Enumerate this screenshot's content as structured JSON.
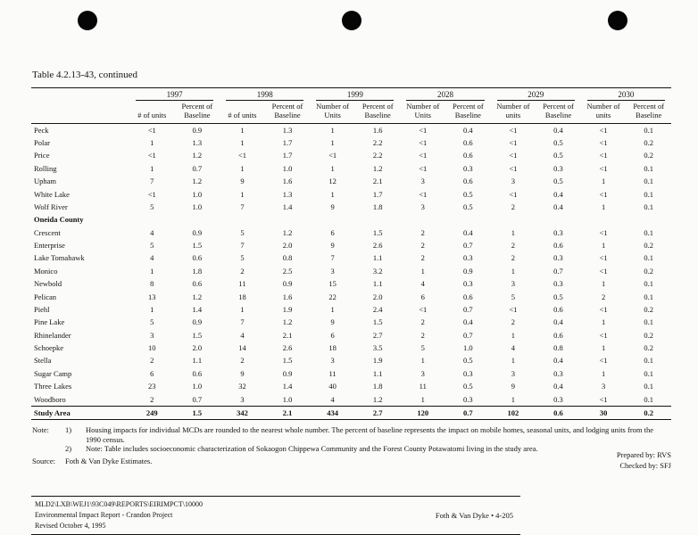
{
  "page": {
    "title": "Table 4.2.13-43, continued",
    "note_label": "Note:",
    "notes": [
      {
        "num": "1)",
        "text": "Housing impacts for individual MCDs are rounded to the nearest whole number.  The percent of baseline represents the impact on mobile homes, seasonal units, and lodging units from the 1990 census."
      },
      {
        "num": "2)",
        "text": "Note:  Table includes socioeconomic characterization of Sokaogon Chippewa Community and the Forest County Potawatomi living in the study area."
      }
    ],
    "source_label": "Source:",
    "source_text": "Foth & Van Dyke Estimates.",
    "prepared_by": "Prepared by: RVS",
    "checked_by": "Checked by: SFJ",
    "footer_path": "MLD2\\LXB\\WEJ1\\93C049\\REPORTS\\EIRIMPCT\\10000",
    "footer_doc": "Environmental Impact Report - Crandon Project",
    "footer_revised": "Revised October 4, 1995",
    "footer_right": "Foth & Van Dyke • 4-205"
  },
  "table": {
    "year_groups": [
      {
        "year": "1997",
        "col1": "# of units",
        "col2": "Percent of Baseline"
      },
      {
        "year": "1998",
        "col1": "# of units",
        "col2": "Percent of Baseline"
      },
      {
        "year": "1999",
        "col1": "Number of Units",
        "col2": "Percent of Baseline"
      },
      {
        "year": "2028",
        "col1": "Number of Units",
        "col2": "Percent of Baseline"
      },
      {
        "year": "2029",
        "col1": "Number of units",
        "col2": "Percent of Baseline"
      },
      {
        "year": "2030",
        "col1": "Number of units",
        "col2": "Percent of Baseline"
      }
    ],
    "rows": [
      {
        "name": "Peck",
        "values": [
          "<1",
          "0.9",
          "1",
          "1.3",
          "1",
          "1.6",
          "<1",
          "0.4",
          "<1",
          "0.4",
          "<1",
          "0.1"
        ]
      },
      {
        "name": "Polar",
        "values": [
          "1",
          "1.3",
          "1",
          "1.7",
          "1",
          "2.2",
          "<1",
          "0.6",
          "<1",
          "0.5",
          "<1",
          "0.2"
        ]
      },
      {
        "name": "Price",
        "values": [
          "<1",
          "1.2",
          "<1",
          "1.7",
          "<1",
          "2.2",
          "<1",
          "0.6",
          "<1",
          "0.5",
          "<1",
          "0.2"
        ]
      },
      {
        "name": "Rolling",
        "values": [
          "1",
          "0.7",
          "1",
          "1.0",
          "1",
          "1.2",
          "<1",
          "0.3",
          "<1",
          "0.3",
          "<1",
          "0.1"
        ]
      },
      {
        "name": "Upham",
        "values": [
          "7",
          "1.2",
          "9",
          "1.6",
          "12",
          "2.1",
          "3",
          "0.6",
          "3",
          "0.5",
          "1",
          "0.1"
        ]
      },
      {
        "name": "White Lake",
        "values": [
          "<1",
          "1.0",
          "1",
          "1.3",
          "1",
          "1.7",
          "<1",
          "0.5",
          "<1",
          "0.4",
          "<1",
          "0.1"
        ]
      },
      {
        "name": "Wolf River",
        "values": [
          "5",
          "1.0",
          "7",
          "1.4",
          "9",
          "1.8",
          "3",
          "0.5",
          "2",
          "0.4",
          "1",
          "0.1"
        ]
      },
      {
        "name": "Oneida County",
        "section": true,
        "values": [
          "",
          "",
          "",
          "",
          "",
          "",
          "",
          "",
          "",
          "",
          "",
          ""
        ]
      },
      {
        "name": "Crescent",
        "values": [
          "4",
          "0.9",
          "5",
          "1.2",
          "6",
          "1.5",
          "2",
          "0.4",
          "1",
          "0.3",
          "<1",
          "0.1"
        ]
      },
      {
        "name": "Enterprise",
        "values": [
          "5",
          "1.5",
          "7",
          "2.0",
          "9",
          "2.6",
          "2",
          "0.7",
          "2",
          "0.6",
          "1",
          "0.2"
        ]
      },
      {
        "name": "Lake Tomahawk",
        "values": [
          "4",
          "0.6",
          "5",
          "0.8",
          "7",
          "1.1",
          "2",
          "0.3",
          "2",
          "0.3",
          "<1",
          "0.1"
        ]
      },
      {
        "name": "Monico",
        "values": [
          "1",
          "1.8",
          "2",
          "2.5",
          "3",
          "3.2",
          "1",
          "0.9",
          "1",
          "0.7",
          "<1",
          "0.2"
        ]
      },
      {
        "name": "Newbold",
        "values": [
          "8",
          "0.6",
          "11",
          "0.9",
          "15",
          "1.1",
          "4",
          "0.3",
          "3",
          "0.3",
          "1",
          "0.1"
        ]
      },
      {
        "name": "Pelican",
        "values": [
          "13",
          "1.2",
          "18",
          "1.6",
          "22",
          "2.0",
          "6",
          "0.6",
          "5",
          "0.5",
          "2",
          "0.1"
        ]
      },
      {
        "name": "Piehl",
        "values": [
          "1",
          "1.4",
          "1",
          "1.9",
          "1",
          "2.4",
          "<1",
          "0.7",
          "<1",
          "0.6",
          "<1",
          "0.2"
        ]
      },
      {
        "name": "Pine Lake",
        "values": [
          "5",
          "0.9",
          "7",
          "1.2",
          "9",
          "1.5",
          "2",
          "0.4",
          "2",
          "0.4",
          "1",
          "0.1"
        ]
      },
      {
        "name": "Rhinelander",
        "values": [
          "3",
          "1.5",
          "4",
          "2.1",
          "6",
          "2.7",
          "2",
          "0.7",
          "1",
          "0.6",
          "<1",
          "0.2"
        ]
      },
      {
        "name": "Schoepke",
        "values": [
          "10",
          "2.0",
          "14",
          "2.6",
          "18",
          "3.5",
          "5",
          "1.0",
          "4",
          "0.8",
          "1",
          "0.2"
        ]
      },
      {
        "name": "Stella",
        "values": [
          "2",
          "1.1",
          "2",
          "1.5",
          "3",
          "1.9",
          "1",
          "0.5",
          "1",
          "0.4",
          "<1",
          "0.1"
        ]
      },
      {
        "name": "Sugar Camp",
        "values": [
          "6",
          "0.6",
          "9",
          "0.9",
          "11",
          "1.1",
          "3",
          "0.3",
          "3",
          "0.3",
          "1",
          "0.1"
        ]
      },
      {
        "name": "Three Lakes",
        "values": [
          "23",
          "1.0",
          "32",
          "1.4",
          "40",
          "1.8",
          "11",
          "0.5",
          "9",
          "0.4",
          "3",
          "0.1"
        ]
      },
      {
        "name": "Woodboro",
        "values": [
          "2",
          "0.7",
          "3",
          "1.0",
          "4",
          "1.2",
          "1",
          "0.3",
          "1",
          "0.3",
          "<1",
          "0.1"
        ]
      },
      {
        "name": "Study Area",
        "total": true,
        "values": [
          "249",
          "1.5",
          "342",
          "2.1",
          "434",
          "2.7",
          "120",
          "0.7",
          "102",
          "0.6",
          "30",
          "0.2"
        ]
      }
    ]
  }
}
